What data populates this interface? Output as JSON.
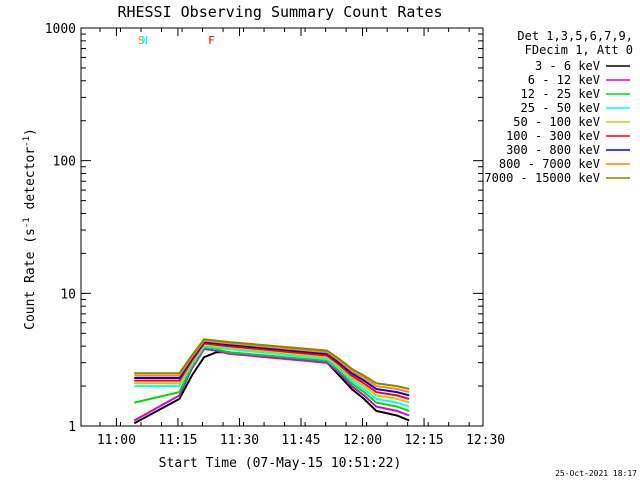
{
  "chart_data": {
    "type": "line",
    "title": "RHESSI Observing Summary Count Rates",
    "xlabel": "Start Time (07-May-15 10:51:22)",
    "ylabel_main": "Count Rate (s",
    "ylabel_sup1": "-1",
    "ylabel_mid": " detector",
    "ylabel_sup2": "-1",
    "ylabel_end": ")",
    "x_unit": "minutes after 10:51:22",
    "xlim": [
      0,
      98
    ],
    "ylim": [
      1,
      1000
    ],
    "yscale": "log",
    "x_ticks": [
      {
        "label": "11:00",
        "x": 8.63
      },
      {
        "label": "11:15",
        "x": 23.63
      },
      {
        "label": "11:30",
        "x": 38.63
      },
      {
        "label": "11:45",
        "x": 53.63
      },
      {
        "label": "12:00",
        "x": 68.63
      },
      {
        "label": "12:15",
        "x": 83.63
      },
      {
        "label": "12:30",
        "x": 98.63
      }
    ],
    "y_ticks": [
      {
        "label": "1",
        "y": 1
      },
      {
        "label": "10",
        "y": 10
      },
      {
        "label": "100",
        "y": 100
      },
      {
        "label": "1000",
        "y": 1000
      }
    ],
    "legend": {
      "placement": "right",
      "header": [
        "Det 1,3,5,6,7,9,",
        "FDecim 1, Att 0"
      ]
    },
    "series": [
      {
        "name": "3 - 6 keV",
        "color": "#000000",
        "points": [
          [
            13,
            1.05
          ],
          [
            24,
            1.6
          ],
          [
            27,
            2.4
          ],
          [
            30,
            3.3
          ],
          [
            33,
            3.6
          ],
          [
            36,
            3.6
          ],
          [
            60,
            3.0
          ],
          [
            63,
            2.4
          ],
          [
            66,
            1.9
          ],
          [
            69,
            1.6
          ],
          [
            72,
            1.3
          ],
          [
            77,
            1.2
          ],
          [
            80,
            1.1
          ]
        ]
      },
      {
        "name": "6 - 12 keV",
        "color": "#dd00dd",
        "points": [
          [
            13,
            1.1
          ],
          [
            24,
            1.7
          ],
          [
            27,
            2.7
          ],
          [
            30,
            3.8
          ],
          [
            33,
            3.7
          ],
          [
            36,
            3.5
          ],
          [
            60,
            3.0
          ],
          [
            63,
            2.5
          ],
          [
            66,
            2.0
          ],
          [
            69,
            1.7
          ],
          [
            72,
            1.4
          ],
          [
            77,
            1.3
          ],
          [
            80,
            1.2
          ]
        ]
      },
      {
        "name": "12 - 25 keV",
        "color": "#00dd00",
        "points": [
          [
            13,
            1.5
          ],
          [
            24,
            1.8
          ],
          [
            27,
            2.8
          ],
          [
            30,
            3.9
          ],
          [
            33,
            3.8
          ],
          [
            36,
            3.6
          ],
          [
            60,
            3.1
          ],
          [
            63,
            2.6
          ],
          [
            66,
            2.1
          ],
          [
            69,
            1.8
          ],
          [
            72,
            1.5
          ],
          [
            77,
            1.4
          ],
          [
            80,
            1.3
          ]
        ]
      },
      {
        "name": "25 - 50 keV",
        "color": "#00ffff",
        "points": [
          [
            13,
            2.0
          ],
          [
            24,
            2.0
          ],
          [
            27,
            2.9
          ],
          [
            30,
            4.0
          ],
          [
            33,
            3.9
          ],
          [
            36,
            3.8
          ],
          [
            60,
            3.2
          ],
          [
            63,
            2.7
          ],
          [
            66,
            2.2
          ],
          [
            69,
            1.9
          ],
          [
            72,
            1.6
          ],
          [
            77,
            1.5
          ],
          [
            80,
            1.4
          ]
        ]
      },
      {
        "name": "50 - 100 keV",
        "color": "#cccc00",
        "points": [
          [
            13,
            2.1
          ],
          [
            24,
            2.1
          ],
          [
            27,
            3.0
          ],
          [
            30,
            4.1
          ],
          [
            33,
            4.0
          ],
          [
            36,
            3.9
          ],
          [
            60,
            3.3
          ],
          [
            63,
            2.8
          ],
          [
            66,
            2.3
          ],
          [
            69,
            2.0
          ],
          [
            72,
            1.7
          ],
          [
            77,
            1.6
          ],
          [
            80,
            1.5
          ]
        ]
      },
      {
        "name": "100 - 300 keV",
        "color": "#ff0000",
        "points": [
          [
            13,
            2.2
          ],
          [
            24,
            2.2
          ],
          [
            27,
            3.1
          ],
          [
            30,
            4.2
          ],
          [
            33,
            4.1
          ],
          [
            36,
            4.0
          ],
          [
            60,
            3.4
          ],
          [
            63,
            2.9
          ],
          [
            66,
            2.4
          ],
          [
            69,
            2.1
          ],
          [
            72,
            1.8
          ],
          [
            77,
            1.7
          ],
          [
            80,
            1.6
          ]
        ]
      },
      {
        "name": "300 - 800 keV",
        "color": "#0000ff",
        "points": [
          [
            13,
            2.3
          ],
          [
            24,
            2.3
          ],
          [
            27,
            3.2
          ],
          [
            30,
            4.3
          ],
          [
            33,
            4.2
          ],
          [
            36,
            4.1
          ],
          [
            60,
            3.5
          ],
          [
            63,
            3.0
          ],
          [
            66,
            2.5
          ],
          [
            69,
            2.2
          ],
          [
            72,
            1.9
          ],
          [
            77,
            1.8
          ],
          [
            80,
            1.7
          ]
        ]
      },
      {
        "name": "800 - 7000 keV",
        "color": "#ff8800",
        "points": [
          [
            13,
            2.4
          ],
          [
            24,
            2.4
          ],
          [
            27,
            3.3
          ],
          [
            30,
            4.4
          ],
          [
            33,
            4.3
          ],
          [
            36,
            4.2
          ],
          [
            60,
            3.6
          ],
          [
            63,
            3.1
          ],
          [
            66,
            2.6
          ],
          [
            69,
            2.3
          ],
          [
            72,
            2.0
          ],
          [
            77,
            1.9
          ],
          [
            80,
            1.8
          ]
        ]
      },
      {
        "name": "7000 - 15000 keV",
        "color": "#888800",
        "points": [
          [
            13,
            2.5
          ],
          [
            24,
            2.5
          ],
          [
            27,
            3.4
          ],
          [
            30,
            4.5
          ],
          [
            33,
            4.4
          ],
          [
            36,
            4.3
          ],
          [
            60,
            3.7
          ],
          [
            63,
            3.2
          ],
          [
            66,
            2.7
          ],
          [
            69,
            2.4
          ],
          [
            72,
            2.1
          ],
          [
            77,
            2.0
          ],
          [
            80,
            1.9
          ]
        ]
      }
    ],
    "markers": [
      {
        "label": "S",
        "x": 13.4,
        "color": "#ff8800"
      },
      {
        "label": "N",
        "x": 14.2,
        "color": "#00ffff"
      },
      {
        "label": "F",
        "x": 30.5,
        "color": "#ff0000"
      }
    ],
    "timestamp": "25-Oct-2021 18:17"
  }
}
